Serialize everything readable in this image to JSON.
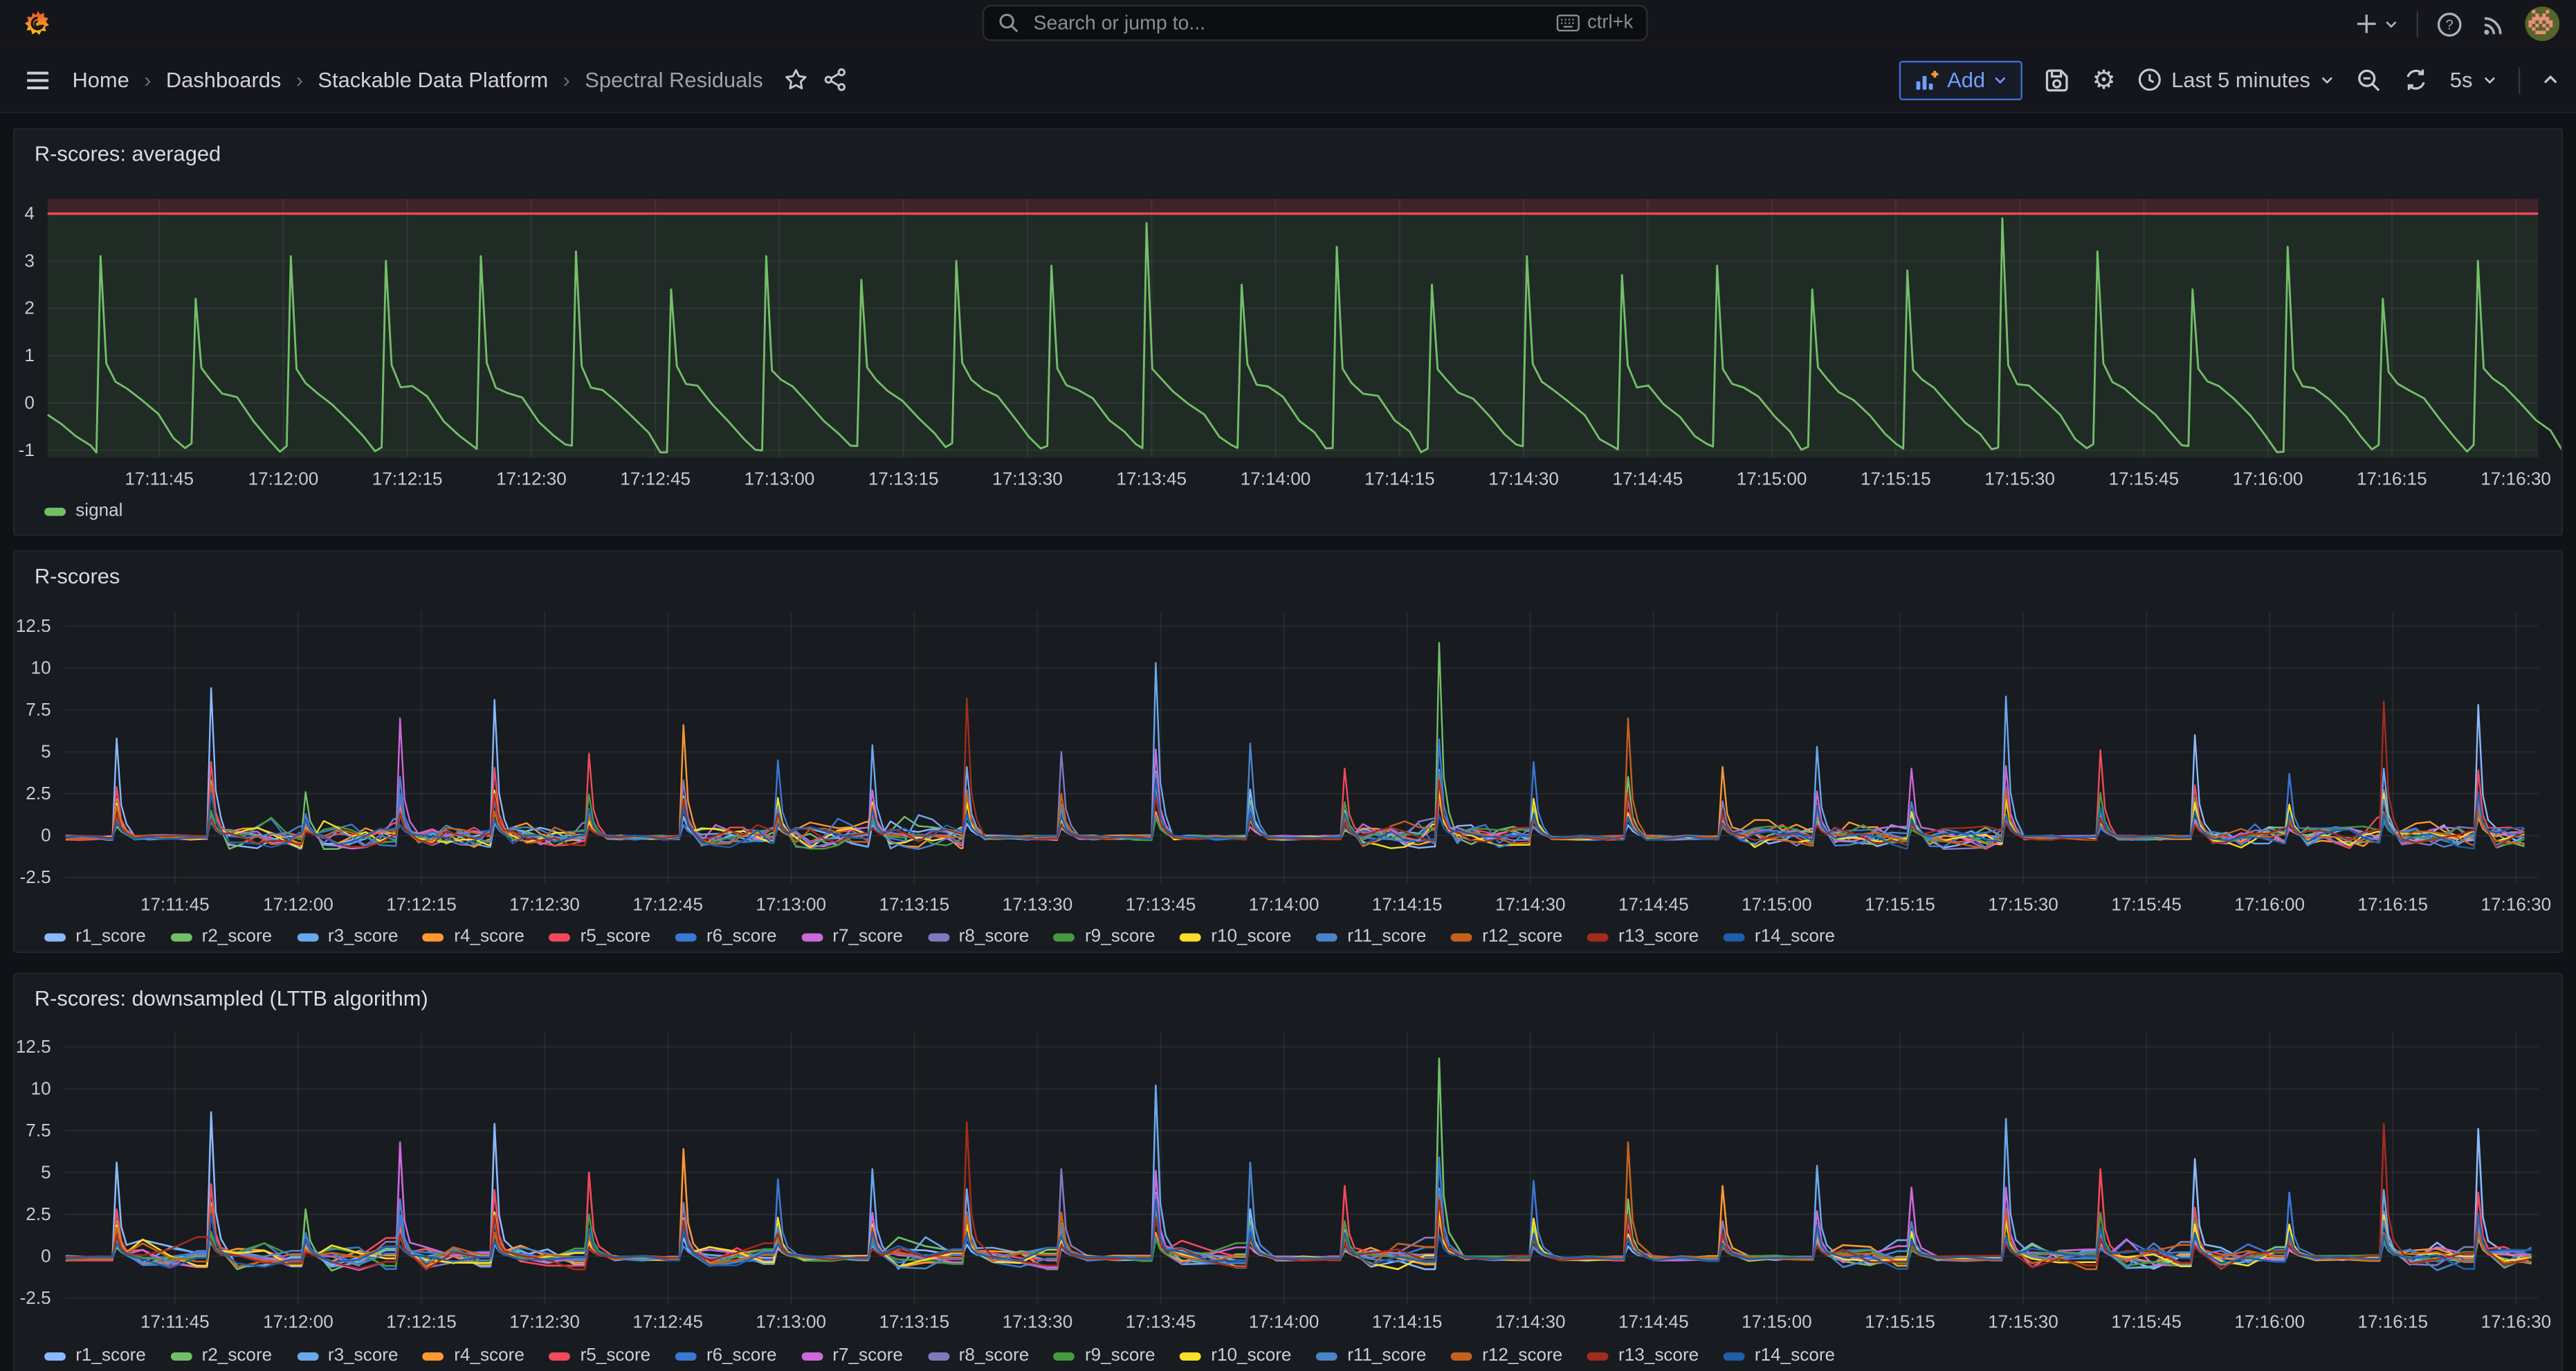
{
  "topbar": {
    "search_placeholder": "Search or jump to...",
    "search_shortcut": "ctrl+k"
  },
  "navbar": {
    "breadcrumbs": [
      "Home",
      "Dashboards",
      "Stackable Data Platform",
      "Spectral Residuals"
    ]
  },
  "toolbar": {
    "add_label": "Add",
    "time_range": "Last 5 minutes",
    "refresh_interval": "5s"
  },
  "icons": {
    "grafana_logo": "orange-flame-spiral",
    "search": "magnifier",
    "keyboard": "keyboard-outline",
    "new_item": "plus",
    "help": "question-circle",
    "news": "rss-arcs",
    "menu": "hamburger",
    "favorite": "star-outline",
    "share": "share-nodes",
    "add_panel": "bar-chart-plus",
    "save": "floppy-disk",
    "settings": "gear",
    "time_picker": "clock",
    "zoom_out": "magnifier-minus",
    "refresh": "circular-arrows",
    "dropdown": "chevron-down",
    "collapse": "chevron-up"
  },
  "colors": {
    "page_bg": "#111217",
    "panel_bg": "#181B1F",
    "panel_border": "#22242A",
    "topbar_bg": "#15161B",
    "text": "#CCCCDC",
    "text_muted": "#9A9BA2",
    "axis_text": "#C8C9D2",
    "grid": "rgba(204,204,220,0.07)",
    "accent_blue": "#3D71D9",
    "accent_blue_text": "#6E9FFF",
    "threshold_red": "#F2495C",
    "signal_green": "#73BF69"
  },
  "chart_data": [
    {
      "type": "line",
      "title": "R-scores: averaged",
      "xlabel": "",
      "ylabel": "",
      "grid": true,
      "legend_position": "bottom",
      "x_tick_labels": [
        "17:11:45",
        "17:12:00",
        "17:12:15",
        "17:12:30",
        "17:12:45",
        "17:13:00",
        "17:13:15",
        "17:13:30",
        "17:13:45",
        "17:14:00",
        "17:14:15",
        "17:14:30",
        "17:14:45",
        "17:15:00",
        "17:15:15",
        "17:15:30",
        "17:15:45",
        "17:16:00",
        "17:16:15",
        "17:16:30"
      ],
      "y_ticks": [
        "4",
        "3",
        "2",
        "1",
        "0",
        "-1"
      ],
      "ylim": [
        -1.16,
        4.31
      ],
      "time_span_seconds": 301,
      "threshold": {
        "value": 4,
        "line_color": "#F2495C",
        "fill_above": "rgba(242,73,92,0.18)",
        "fill_below": "rgba(115,191,105,0.10)"
      },
      "series": [
        {
          "name": "signal",
          "color": "#73BF69"
        }
      ],
      "spike_times": [
        6.4,
        17.9,
        29.4,
        40.9,
        52.4,
        63.9,
        75.4,
        86.9,
        98.4,
        109.9,
        121.4,
        132.9,
        144.4,
        155.9,
        167.4,
        178.9,
        190.4,
        201.9,
        213.4,
        224.9,
        236.4,
        247.9,
        259.4,
        270.9,
        282.4,
        293.9
      ],
      "spike_peaks": [
        3.1,
        2.2,
        3.1,
        3.0,
        3.1,
        3.2,
        2.4,
        3.1,
        2.6,
        3.0,
        2.9,
        3.8,
        2.5,
        3.3,
        2.5,
        3.1,
        2.7,
        2.9,
        2.4,
        2.8,
        3.9,
        3.2,
        2.4,
        3.3,
        2.2,
        3.0
      ],
      "decay_offsets": [
        0.7,
        1.8,
        3.2,
        5.0,
        7.0,
        8.8,
        10.2
      ],
      "decay_values": [
        0.75,
        0.42,
        0.27,
        0.06,
        -0.33,
        -0.68,
        -0.95
      ],
      "lead_in": [
        [
          0,
          -0.25
        ],
        [
          1.7,
          -0.45
        ],
        [
          3.4,
          -0.7
        ],
        [
          5.2,
          -0.9
        ]
      ],
      "baseline_range": [
        -1.0,
        0.6
      ]
    },
    {
      "type": "line",
      "title": "R-scores",
      "xlabel": "",
      "ylabel": "",
      "grid": true,
      "legend_position": "bottom",
      "downsampled": false,
      "x_tick_labels": [
        "17:11:45",
        "17:12:00",
        "17:12:15",
        "17:12:30",
        "17:12:45",
        "17:13:00",
        "17:13:15",
        "17:13:30",
        "17:13:45",
        "17:14:00",
        "17:14:15",
        "17:14:30",
        "17:14:45",
        "17:15:00",
        "17:15:15",
        "17:15:30",
        "17:15:45",
        "17:16:00",
        "17:16:15",
        "17:16:30"
      ],
      "y_ticks": [
        "12.5",
        "10",
        "7.5",
        "5",
        "2.5",
        "0",
        "-2.5"
      ],
      "ylim": [
        -2.9,
        13.4
      ],
      "time_span_seconds": 301,
      "series": [
        {
          "name": "r1_score",
          "color": "#8AB8FF"
        },
        {
          "name": "r2_score",
          "color": "#73BF69"
        },
        {
          "name": "r3_score",
          "color": "#69A8EF"
        },
        {
          "name": "r4_score",
          "color": "#FF9830"
        },
        {
          "name": "r5_score",
          "color": "#F2495C"
        },
        {
          "name": "r6_score",
          "color": "#3A78D6"
        },
        {
          "name": "r7_score",
          "color": "#CE68D9"
        },
        {
          "name": "r8_score",
          "color": "#8378BF"
        },
        {
          "name": "r9_score",
          "color": "#459A3F"
        },
        {
          "name": "r10_score",
          "color": "#FADE2A"
        },
        {
          "name": "r11_score",
          "color": "#4A84C8"
        },
        {
          "name": "r12_score",
          "color": "#C4621D"
        },
        {
          "name": "r13_score",
          "color": "#A32C1C"
        },
        {
          "name": "r14_score",
          "color": "#1F5EA8"
        }
      ],
      "spike_times": [
        6.4,
        17.9,
        29.4,
        40.9,
        52.4,
        63.9,
        75.4,
        86.9,
        98.4,
        109.9,
        121.4,
        132.9,
        144.4,
        155.9,
        167.4,
        178.9,
        190.4,
        201.9,
        213.4,
        224.9,
        236.4,
        247.9,
        259.4,
        270.9,
        282.4,
        293.9
      ],
      "spike_envelope": [
        5.8,
        8.8,
        2.6,
        7.0,
        8.1,
        4.9,
        6.6,
        4.5,
        5.4,
        8.2,
        5.0,
        10.3,
        5.5,
        4.0,
        11.5,
        4.4,
        7.0,
        4.1,
        5.3,
        4.0,
        8.3,
        5.1,
        6.0,
        3.7,
        8.0,
        7.8
      ],
      "lead_series": [
        0,
        0,
        1,
        6,
        0,
        4,
        3,
        5,
        2,
        12,
        7,
        2,
        10,
        4,
        1,
        5,
        11,
        3,
        2,
        6,
        2,
        4,
        0,
        5,
        12,
        0
      ],
      "baseline_range": [
        -1.05,
        0.65
      ]
    },
    {
      "type": "line",
      "title": "R-scores: downsampled (LTTB algorithm)",
      "xlabel": "",
      "ylabel": "",
      "grid": true,
      "legend_position": "bottom",
      "downsampled": true,
      "x_tick_labels": [
        "17:11:45",
        "17:12:00",
        "17:12:15",
        "17:12:30",
        "17:12:45",
        "17:13:00",
        "17:13:15",
        "17:13:30",
        "17:13:45",
        "17:14:00",
        "17:14:15",
        "17:14:30",
        "17:14:45",
        "17:15:00",
        "17:15:15",
        "17:15:30",
        "17:15:45",
        "17:16:00",
        "17:16:15",
        "17:16:30"
      ],
      "y_ticks": [
        "12.5",
        "10",
        "7.5",
        "5",
        "2.5",
        "0",
        "-2.5"
      ],
      "ylim": [
        -2.9,
        13.4
      ],
      "time_span_seconds": 301,
      "series": [
        {
          "name": "r1_score",
          "color": "#8AB8FF"
        },
        {
          "name": "r2_score",
          "color": "#73BF69"
        },
        {
          "name": "r3_score",
          "color": "#69A8EF"
        },
        {
          "name": "r4_score",
          "color": "#FF9830"
        },
        {
          "name": "r5_score",
          "color": "#F2495C"
        },
        {
          "name": "r6_score",
          "color": "#3A78D6"
        },
        {
          "name": "r7_score",
          "color": "#CE68D9"
        },
        {
          "name": "r8_score",
          "color": "#8378BF"
        },
        {
          "name": "r9_score",
          "color": "#459A3F"
        },
        {
          "name": "r10_score",
          "color": "#FADE2A"
        },
        {
          "name": "r11_score",
          "color": "#4A84C8"
        },
        {
          "name": "r12_score",
          "color": "#C4621D"
        },
        {
          "name": "r13_score",
          "color": "#A32C1C"
        },
        {
          "name": "r14_score",
          "color": "#1F5EA8"
        }
      ],
      "spike_times": [
        6.4,
        17.9,
        29.4,
        40.9,
        52.4,
        63.9,
        75.4,
        86.9,
        98.4,
        109.9,
        121.4,
        132.9,
        144.4,
        155.9,
        167.4,
        178.9,
        190.4,
        201.9,
        213.4,
        224.9,
        236.4,
        247.9,
        259.4,
        270.9,
        282.4,
        293.9
      ],
      "spike_envelope": [
        5.6,
        8.6,
        2.8,
        6.8,
        7.9,
        5.0,
        6.4,
        4.6,
        5.2,
        8.0,
        5.2,
        10.2,
        5.6,
        4.2,
        11.8,
        4.5,
        6.8,
        4.2,
        5.4,
        4.1,
        8.2,
        5.2,
        5.8,
        3.8,
        7.9,
        7.6
      ],
      "lead_series": [
        0,
        0,
        1,
        6,
        0,
        4,
        3,
        5,
        2,
        12,
        7,
        2,
        10,
        4,
        1,
        5,
        11,
        3,
        2,
        6,
        2,
        4,
        0,
        5,
        12,
        0
      ],
      "baseline_range": [
        -1.05,
        0.65
      ]
    }
  ]
}
